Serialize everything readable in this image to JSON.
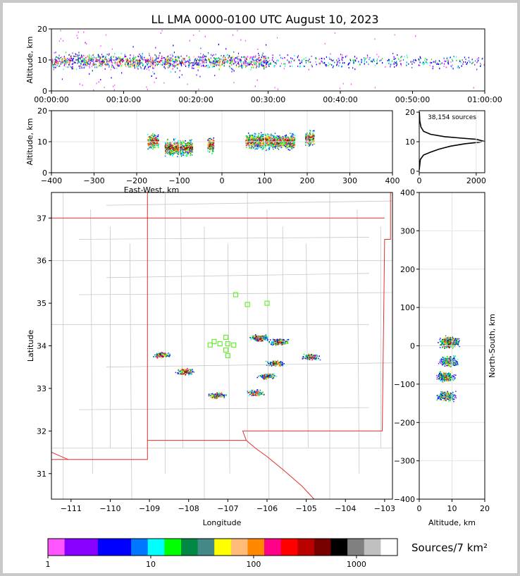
{
  "title": "LL LMA 0000-0100 UTC August 10, 2023",
  "colors": {
    "frame": "#c8c8c8",
    "map_border": "#c8c8c8",
    "state_line": "#e03030",
    "station_marker": "#66ee33",
    "pdf_line": "#000000"
  },
  "panels": {
    "time_height": {
      "ylabel": "Altitude, km",
      "ylim": [
        0,
        20
      ],
      "yticks": [
        "0",
        "10",
        "20"
      ],
      "xticks": [
        "00:00:00",
        "00:10:00",
        "00:20:00",
        "00:30:00",
        "00:40:00",
        "00:50:00",
        "01:00:00"
      ]
    },
    "ew_height": {
      "ylabel": "Altitude, km",
      "xlabel": "East-West, km",
      "ylim": [
        0,
        20
      ],
      "xlim": [
        -400,
        400
      ],
      "yticks": [
        "0",
        "10",
        "20"
      ],
      "xticks": [
        "−400",
        "−300",
        "−200",
        "−100",
        "0",
        "100",
        "200",
        "300",
        "400"
      ]
    },
    "alt_hist": {
      "annotation": "38,154 sources",
      "yticks": [
        "0",
        "10",
        "20"
      ],
      "xticks": [
        "0",
        "2000"
      ]
    },
    "plan": {
      "xlabel": "Longitude",
      "ylabel": "Latitude",
      "xlim": [
        -111.5,
        -102.8
      ],
      "ylim": [
        30.4,
        37.6
      ],
      "xticks": [
        "−111",
        "−110",
        "−109",
        "−108",
        "−107",
        "−106",
        "−105",
        "−104",
        "−103"
      ],
      "yticks": [
        "31",
        "32",
        "33",
        "34",
        "35",
        "36",
        "37"
      ]
    },
    "ns_height": {
      "xlabel": "Altitude, km",
      "ylabel": "North-South, km",
      "xlim": [
        0,
        20
      ],
      "ylim": [
        -400,
        400
      ],
      "xticks": [
        "0",
        "10",
        "20"
      ],
      "yticks": [
        "400",
        "300",
        "200",
        "100",
        "0",
        "−100",
        "−200",
        "−300",
        "−400"
      ]
    }
  },
  "colorbar": {
    "title": "Sources/7 km²",
    "ticks": [
      "1",
      "10",
      "100",
      "1000"
    ],
    "colors": [
      "#ff55ff",
      "#8800ff",
      "#8800ff",
      "#0000ff",
      "#0000ff",
      "#0077ff",
      "#00ffff",
      "#00ff00",
      "#008844",
      "#448888",
      "#ffff00",
      "#ffbb77",
      "#ff8800",
      "#ff0088",
      "#ff0000",
      "#bb0000",
      "#770000",
      "#000000",
      "#808080",
      "#c0c0c0",
      "#ffffff"
    ]
  },
  "chart_data": [
    {
      "type": "scatter",
      "title": "LL LMA 0000-0100 UTC August 10, 2023",
      "xlabel": "",
      "ylabel": "Altitude, km",
      "x_range": [
        "00:00:00",
        "01:00:00"
      ],
      "ylim": [
        0,
        20
      ],
      "description_values": "LMA sources vs time, dense 0-30 min at 5-15 km, sparser afterward"
    },
    {
      "type": "heatmap",
      "xlabel": "East-West, km",
      "ylabel": "Altitude, km",
      "xlim": [
        -400,
        400
      ],
      "ylim": [
        0,
        20
      ],
      "clusters": [
        {
          "x_range": [
            -175,
            -150
          ],
          "alt_center": 10
        },
        {
          "x_range": [
            -135,
            -70
          ],
          "alt_center": 8
        },
        {
          "x_range": [
            -35,
            -20
          ],
          "alt_center": 9
        },
        {
          "x_range": [
            55,
            170
          ],
          "alt_center": 10
        },
        {
          "x_range": [
            195,
            215
          ],
          "alt_center": 11
        }
      ]
    },
    {
      "type": "line",
      "annotation": "38,154 sources",
      "xlim": [
        0,
        2300
      ],
      "ylim": [
        0,
        20
      ],
      "points": [
        [
          0,
          0.5
        ],
        [
          40,
          4
        ],
        [
          150,
          5.5
        ],
        [
          400,
          6.5
        ],
        [
          700,
          7.5
        ],
        [
          1100,
          8.5
        ],
        [
          1600,
          9.3
        ],
        [
          2100,
          9.8
        ],
        [
          2250,
          10.2
        ],
        [
          2000,
          10.8
        ],
        [
          1500,
          11.2
        ],
        [
          900,
          11.7
        ],
        [
          400,
          12.5
        ],
        [
          150,
          13.5
        ],
        [
          60,
          15
        ],
        [
          20,
          17
        ],
        [
          5,
          20
        ]
      ]
    },
    {
      "type": "heatmap",
      "xlabel": "Longitude",
      "ylabel": "Latitude",
      "xlim": [
        -111.5,
        -102.8
      ],
      "ylim": [
        30.4,
        37.6
      ],
      "stations": [
        [
          -106.8,
          35.2
        ],
        [
          -106.5,
          34.97
        ],
        [
          -106.0,
          35.0
        ],
        [
          -107.35,
          34.1
        ],
        [
          -107.2,
          34.05
        ],
        [
          -107.05,
          34.2
        ],
        [
          -107.0,
          34.05
        ],
        [
          -106.85,
          34.02
        ],
        [
          -107.05,
          33.9
        ],
        [
          -107.0,
          33.77
        ],
        [
          -107.45,
          34.02
        ]
      ],
      "clusters": [
        {
          "lon": -108.7,
          "lat": 33.8
        },
        {
          "lon": -108.1,
          "lat": 33.4
        },
        {
          "lon": -107.3,
          "lat": 32.85
        },
        {
          "lon": -106.2,
          "lat": 34.2
        },
        {
          "lon": -105.7,
          "lat": 34.1
        },
        {
          "lon": -105.8,
          "lat": 33.6
        },
        {
          "lon": -106.0,
          "lat": 33.3
        },
        {
          "lon": -106.3,
          "lat": 32.9
        },
        {
          "lon": -104.9,
          "lat": 33.75
        }
      ]
    },
    {
      "type": "heatmap",
      "xlabel": "Altitude, km",
      "ylabel": "North-South, km",
      "xlim": [
        0,
        20
      ],
      "ylim": [
        -400,
        400
      ],
      "clusters": [
        {
          "ns_center": 10,
          "alt_center": 9
        },
        {
          "ns_center": -40,
          "alt_center": 9
        },
        {
          "ns_center": -80,
          "alt_center": 8
        },
        {
          "ns_center": -130,
          "alt_center": 8
        }
      ]
    }
  ]
}
